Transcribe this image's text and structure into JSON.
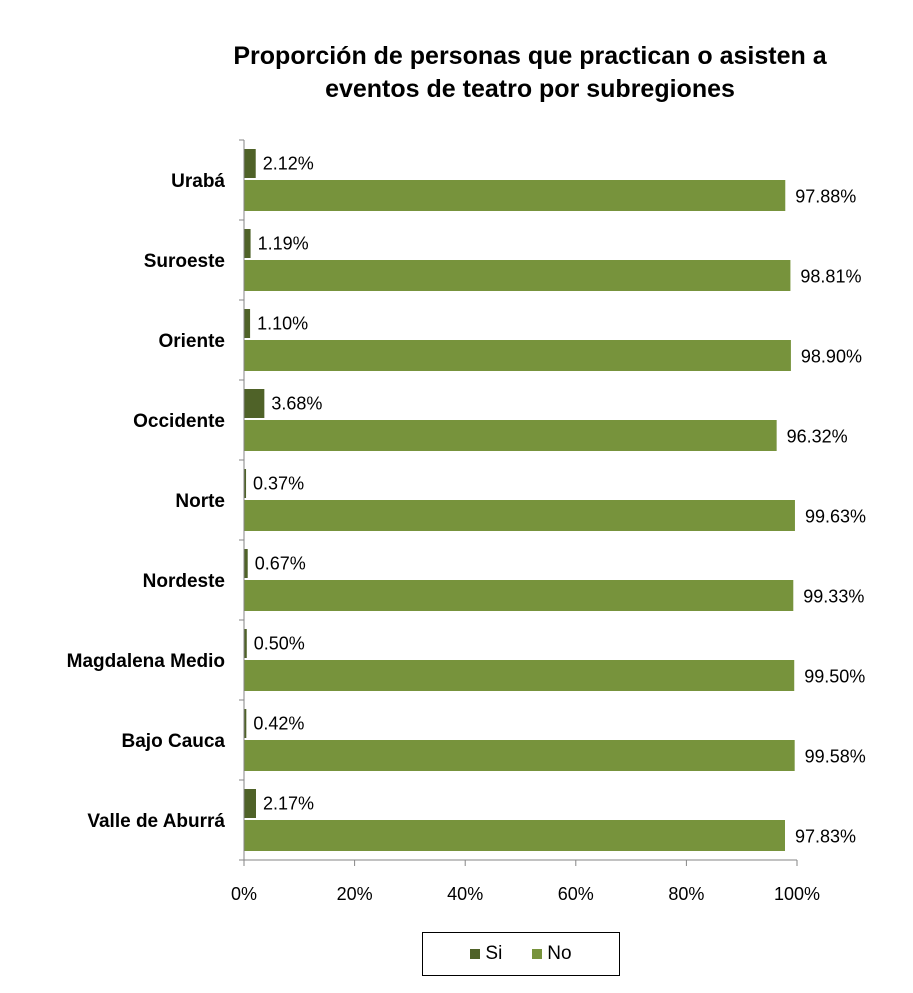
{
  "chart_data": {
    "type": "bar",
    "orientation": "horizontal",
    "title_lines": [
      "Proporción de personas que practican o asisten a",
      "eventos de teatro  por subregiones"
    ],
    "categories": [
      "Urabá",
      "Suroeste",
      "Oriente",
      "Occidente",
      "Norte",
      "Nordeste",
      "Magdalena Medio",
      "Bajo Cauca",
      "Valle de Aburrá"
    ],
    "series": [
      {
        "name": "Si",
        "color": "#4f6228",
        "values": [
          2.12,
          1.19,
          1.1,
          3.68,
          0.37,
          0.67,
          0.5,
          0.42,
          2.17
        ],
        "labels": [
          "2.12%",
          "1.19%",
          "1.10%",
          "3.68%",
          "0.37%",
          "0.67%",
          "0.50%",
          "0.42%",
          "2.17%"
        ]
      },
      {
        "name": "No",
        "color": "#77933c",
        "values": [
          97.88,
          98.81,
          98.9,
          96.32,
          99.63,
          99.33,
          99.5,
          99.58,
          97.83
        ],
        "labels": [
          "97.88%",
          "98.81%",
          "98.90%",
          "96.32%",
          "99.63%",
          "99.33%",
          "99.50%",
          "99.58%",
          "97.83%"
        ]
      }
    ],
    "x_ticks": [
      "0%",
      "20%",
      "40%",
      "60%",
      "80%",
      "100%"
    ],
    "xlim": [
      0,
      100
    ],
    "grid": false,
    "legend_position": "bottom"
  }
}
